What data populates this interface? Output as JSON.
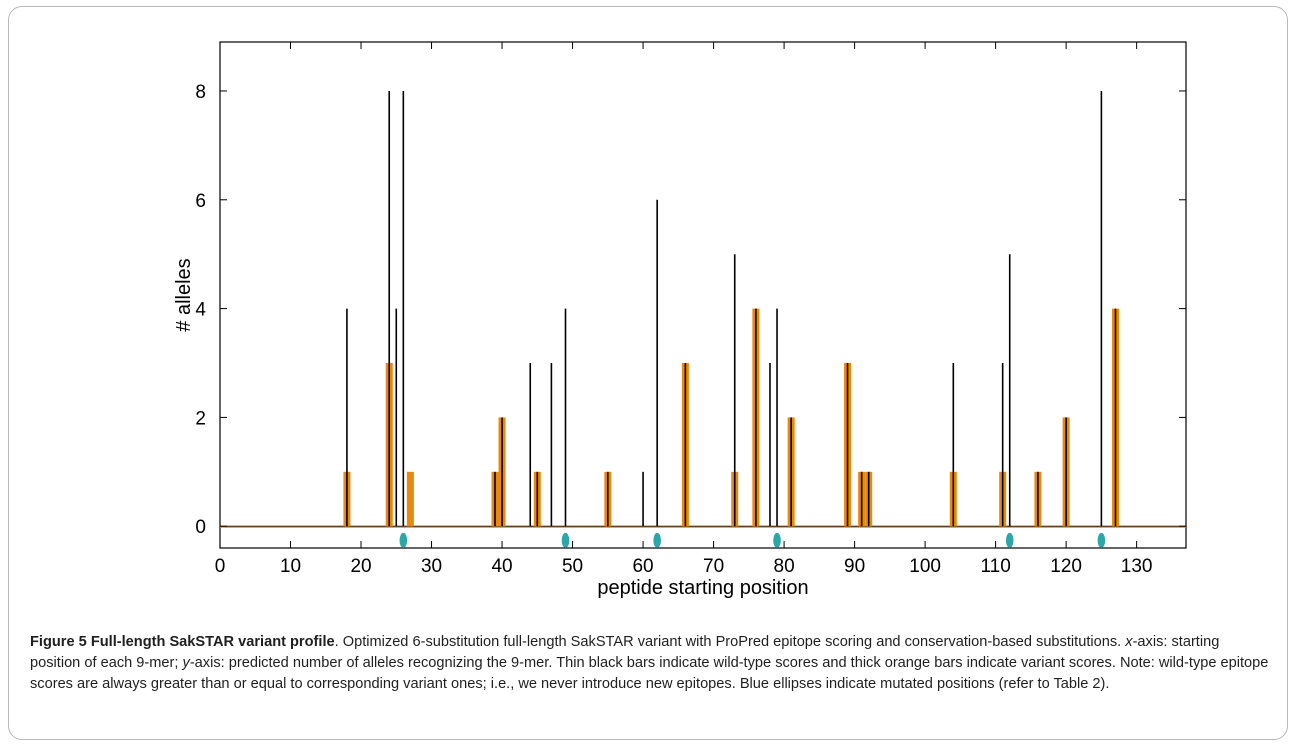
{
  "chart_data": {
    "type": "bar",
    "xlabel": "peptide starting position",
    "ylabel": "# alleles",
    "xlim": [
      0,
      137
    ],
    "ylim": [
      -0.4,
      8.9
    ],
    "x_ticks": [
      0,
      10,
      20,
      30,
      40,
      50,
      60,
      70,
      80,
      90,
      100,
      110,
      120,
      130
    ],
    "y_ticks": [
      0,
      2,
      4,
      6,
      8
    ],
    "grid": false,
    "colors": {
      "wild_type": "#000000",
      "variant": "#e8890c",
      "mutation": "#2ba7a7"
    },
    "series": [
      {
        "style": "thin black bars",
        "points": [
          [
            18,
            4
          ],
          [
            24,
            8
          ],
          [
            25,
            4
          ],
          [
            26,
            8
          ],
          [
            39,
            1
          ],
          [
            40,
            2
          ],
          [
            44,
            3
          ],
          [
            45,
            1
          ],
          [
            47,
            3
          ],
          [
            49,
            4
          ],
          [
            55,
            1
          ],
          [
            60,
            1
          ],
          [
            62,
            6
          ],
          [
            66,
            3
          ],
          [
            73,
            5
          ],
          [
            76,
            4
          ],
          [
            78,
            3
          ],
          [
            79,
            4
          ],
          [
            81,
            2
          ],
          [
            89,
            3
          ],
          [
            91,
            1
          ],
          [
            92,
            1
          ],
          [
            104,
            3
          ],
          [
            111,
            3
          ],
          [
            112,
            5
          ],
          [
            116,
            1
          ],
          [
            120,
            2
          ],
          [
            125,
            8
          ],
          [
            127,
            4
          ]
        ]
      },
      {
        "style": "thick orange bars",
        "points": [
          [
            18,
            1
          ],
          [
            24,
            3
          ],
          [
            27,
            1
          ],
          [
            39,
            1
          ],
          [
            40,
            2
          ],
          [
            45,
            1
          ],
          [
            55,
            1
          ],
          [
            66,
            3
          ],
          [
            73,
            1
          ],
          [
            76,
            4
          ],
          [
            81,
            2
          ],
          [
            89,
            3
          ],
          [
            91,
            1
          ],
          [
            92,
            1
          ],
          [
            104,
            1
          ],
          [
            111,
            1
          ],
          [
            116,
            1
          ],
          [
            120,
            2
          ],
          [
            127,
            4
          ]
        ]
      },
      {
        "style": "blue ellipses",
        "positions": [
          26,
          49,
          62,
          79,
          112,
          125
        ]
      }
    ]
  },
  "caption": {
    "label": "Figure 5 Full-length SakSTAR variant profile",
    "sentence1": ". Optimized 6-substitution full-length SakSTAR variant with ProPred epitope scoring and conservation-based substitutions. ",
    "x_axis_term": "x",
    "x_axis_text": "-axis: starting position of each 9-mer; ",
    "y_axis_term": "y",
    "y_axis_text": "-axis: predicted number of alleles recognizing the 9-mer. Thin black bars indicate wild-type scores and thick orange bars indicate variant scores. Note: wild-type epitope scores are always greater than or equal to corresponding variant ones; i.e., we never introduce new epitopes. Blue ellipses indicate mutated positions (refer to Table 2)."
  }
}
